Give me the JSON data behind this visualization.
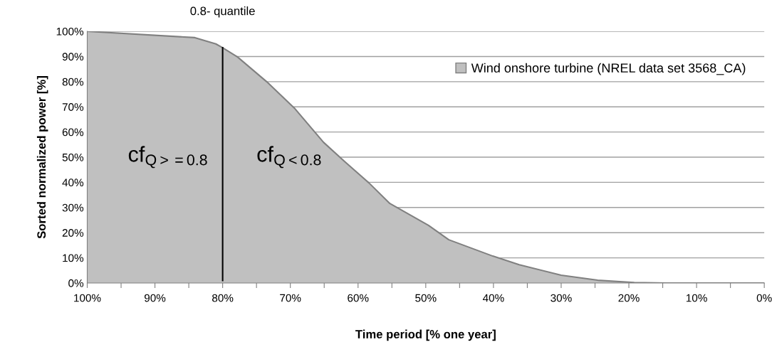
{
  "chart_data": {
    "type": "area",
    "xlabel": "Time period [% one year]",
    "ylabel": "Sorted normalized power [%]",
    "x": [
      100,
      84.1,
      81,
      80,
      77.8,
      73.5,
      69.3,
      65.1,
      62,
      58.4,
      55.3,
      49.6,
      46.6,
      40.1,
      36.2,
      30,
      24.6,
      19.2,
      14.5,
      0
    ],
    "series": [
      {
        "name": "Wind onshore turbine (NREL data set 3568_CA)",
        "color": "#c0c0c0",
        "values": [
          100,
          97.5,
          95,
          93.5,
          89.8,
          80,
          69.2,
          55.9,
          48.3,
          39.8,
          31.6,
          22.9,
          17.2,
          10.7,
          7.3,
          3.1,
          1.1,
          0.2,
          0,
          0
        ]
      }
    ],
    "xlim": [
      100,
      0
    ],
    "ylim": [
      0,
      100
    ],
    "xticks": [
      {
        "value": 100,
        "label": "100%"
      },
      {
        "value": 95,
        "label": null
      },
      {
        "value": 90,
        "label": "90%"
      },
      {
        "value": 85,
        "label": null
      },
      {
        "value": 80,
        "label": "80%"
      },
      {
        "value": 75,
        "label": null
      },
      {
        "value": 70,
        "label": "70%"
      },
      {
        "value": 65,
        "label": null
      },
      {
        "value": 60,
        "label": "60%"
      },
      {
        "value": 55,
        "label": null
      },
      {
        "value": 50,
        "label": "50%"
      },
      {
        "value": 45,
        "label": null
      },
      {
        "value": 40,
        "label": "40%"
      },
      {
        "value": 35,
        "label": null
      },
      {
        "value": 30,
        "label": "30%"
      },
      {
        "value": 25,
        "label": null
      },
      {
        "value": 20,
        "label": "20%"
      },
      {
        "value": 15,
        "label": null
      },
      {
        "value": 10,
        "label": "10%"
      },
      {
        "value": 5,
        "label": null
      },
      {
        "value": 0,
        "label": "0%"
      }
    ],
    "yticks": [
      {
        "value": 0,
        "label": "0%"
      },
      {
        "value": 10,
        "label": "10%"
      },
      {
        "value": 20,
        "label": "20%"
      },
      {
        "value": 30,
        "label": "30%"
      },
      {
        "value": 40,
        "label": "40%"
      },
      {
        "value": 50,
        "label": "50%"
      },
      {
        "value": 60,
        "label": "60%"
      },
      {
        "value": 70,
        "label": "70%"
      },
      {
        "value": 80,
        "label": "80%"
      },
      {
        "value": 90,
        "label": "90%"
      },
      {
        "value": 100,
        "label": "100%"
      }
    ],
    "ref_lines": [
      {
        "axis": "x",
        "value": 80,
        "label": "0.8- quantile",
        "color": "#000000"
      }
    ],
    "annotations": [
      "cf$_{Q>=0.8}$",
      "cf$_{Q<0.8}$"
    ],
    "grid": "y",
    "legend": "top right"
  }
}
